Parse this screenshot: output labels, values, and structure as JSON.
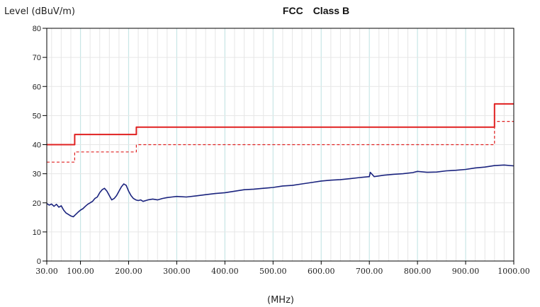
{
  "chart_data": {
    "type": "line",
    "title": "FCC　Class B",
    "ylabel": "Level (dBuV/m)",
    "xlabel": "(MHz)",
    "ylim": [
      0,
      80
    ],
    "xlim": [
      30,
      1000
    ],
    "y_ticks": [
      0,
      10,
      20,
      30,
      40,
      50,
      60,
      70,
      80
    ],
    "x_tick_labels": [
      "30.00",
      "100.00",
      "200.00",
      "300.00",
      "400.00",
      "500.00",
      "600.00",
      "700.00",
      "800.00",
      "900.00",
      "1000.00"
    ],
    "x_tick_values": [
      30,
      100,
      200,
      300,
      400,
      500,
      600,
      700,
      800,
      900,
      1000
    ],
    "grid": true,
    "colors": {
      "limit": "#e02020",
      "margin": "#e02020",
      "measured": "#1a237e",
      "grid_minor": "#e6e6e6",
      "grid_major": "#c8e6e6"
    },
    "series": [
      {
        "key": "limit",
        "style": "solid",
        "x": [
          30,
          88,
          88,
          216,
          216,
          960,
          960,
          1000
        ],
        "y": [
          40,
          40,
          43.5,
          43.5,
          46,
          46,
          54,
          54
        ]
      },
      {
        "key": "margin",
        "style": "dashed",
        "x": [
          30,
          88,
          88,
          216,
          216,
          960,
          960,
          1000
        ],
        "y": [
          34,
          34,
          37.5,
          37.5,
          40,
          40,
          48,
          48
        ]
      },
      {
        "key": "measured",
        "style": "solid",
        "x": [
          30,
          35,
          40,
          45,
          50,
          55,
          60,
          65,
          70,
          75,
          80,
          85,
          90,
          95,
          100,
          105,
          110,
          115,
          120,
          125,
          130,
          135,
          140,
          145,
          150,
          155,
          160,
          165,
          170,
          175,
          180,
          185,
          190,
          195,
          200,
          205,
          210,
          215,
          220,
          225,
          230,
          240,
          250,
          260,
          270,
          280,
          290,
          300,
          320,
          340,
          360,
          380,
          400,
          420,
          440,
          460,
          480,
          500,
          520,
          540,
          560,
          580,
          600,
          620,
          640,
          660,
          680,
          700,
          702,
          710,
          730,
          750,
          770,
          790,
          800,
          820,
          840,
          860,
          880,
          900,
          920,
          940,
          960,
          980,
          1000
        ],
        "y": [
          19.8,
          19.2,
          19.6,
          18.8,
          19.5,
          18.5,
          19.0,
          17.5,
          16.5,
          16.0,
          15.5,
          15.2,
          16.0,
          16.8,
          17.5,
          18.0,
          18.8,
          19.5,
          20.0,
          20.5,
          21.5,
          22.0,
          23.5,
          24.5,
          25.0,
          24.0,
          22.5,
          21.0,
          21.5,
          22.5,
          24.0,
          25.5,
          26.5,
          26.0,
          24.0,
          22.5,
          21.5,
          21.0,
          20.8,
          21.0,
          20.5,
          21.0,
          21.3,
          21.0,
          21.5,
          21.8,
          22.0,
          22.2,
          22.0,
          22.4,
          22.8,
          23.2,
          23.5,
          24.0,
          24.5,
          24.7,
          25.0,
          25.3,
          25.8,
          26.0,
          26.5,
          27.0,
          27.5,
          27.8,
          28.0,
          28.3,
          28.7,
          29.0,
          30.5,
          29.0,
          29.5,
          29.8,
          30.0,
          30.4,
          30.8,
          30.5,
          30.6,
          31.0,
          31.2,
          31.5,
          32.0,
          32.3,
          32.8,
          33.0,
          32.7
        ]
      }
    ]
  }
}
